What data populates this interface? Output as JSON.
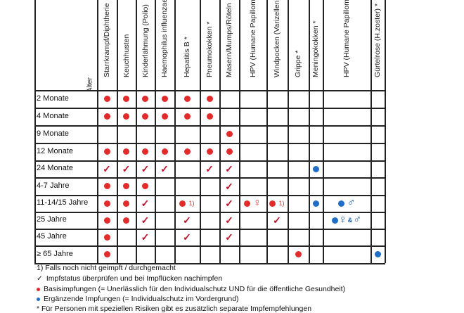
{
  "table": {
    "columns": [
      {
        "key": "alter",
        "label": "Alter"
      },
      {
        "key": "sd",
        "label": "Starrkrampf/Diphtherie"
      },
      {
        "key": "keuch",
        "label": "Keuchhusten"
      },
      {
        "key": "polio",
        "label": "Kinderlähmung (Polio)"
      },
      {
        "key": "hib",
        "label": "Haemophilus influenzae"
      },
      {
        "key": "hepb",
        "label": "Hepatitis B *"
      },
      {
        "key": "pneumo",
        "label": "Pneumokokken *"
      },
      {
        "key": "mmr",
        "label": "Masern/Mumps/Röteln"
      },
      {
        "key": "hpv1",
        "label": "HPV (Humane Papillomaviren)"
      },
      {
        "key": "vzv",
        "label": "Windpocken (Varizellen)"
      },
      {
        "key": "grippe",
        "label": "Grippe *"
      },
      {
        "key": "mening",
        "label": "Meningokokken *"
      },
      {
        "key": "hpv2",
        "label": "HPV (Humane Papillomaviren)"
      },
      {
        "key": "zoster",
        "label": "Gürtelrose (H.zoster) *"
      }
    ],
    "rows": [
      {
        "label": "2 Monate",
        "cells": {
          "sd": "red",
          "keuch": "red",
          "polio": "red",
          "hib": "red",
          "hepb": "red",
          "pneumo": "red"
        }
      },
      {
        "label": "4 Monate",
        "cells": {
          "sd": "red",
          "keuch": "red",
          "polio": "red",
          "hib": "red",
          "hepb": "red",
          "pneumo": "red"
        }
      },
      {
        "label": "9 Monate",
        "cells": {
          "mmr": "red"
        }
      },
      {
        "label": "12 Monate",
        "cells": {
          "sd": "red",
          "keuch": "red",
          "polio": "red",
          "hib": "red",
          "hepb": "red",
          "pneumo": "red",
          "mmr": "red"
        }
      },
      {
        "label": "24 Monate",
        "cells": {
          "sd": "check",
          "keuch": "check",
          "polio": "check",
          "hib": "check",
          "pneumo": "check",
          "mmr": "check",
          "mening": "blue"
        }
      },
      {
        "label": "4-7 Jahre",
        "cells": {
          "sd": "red",
          "keuch": "red",
          "polio": "red",
          "mmr": "check"
        }
      },
      {
        "label": "11-14/15 Jahre",
        "cells": {
          "sd": "red",
          "keuch": "red",
          "polio": "check",
          "hepb": "red-note",
          "mmr": "check",
          "hpv1": "red-female",
          "vzv": "red-note",
          "mening": "blue",
          "hpv2": "blue-male"
        }
      },
      {
        "label": "25 Jahre",
        "cells": {
          "sd": "red",
          "keuch": "red",
          "polio": "check",
          "hepb": "check",
          "mmr": "check",
          "vzv": "check",
          "hpv2": "blue-both"
        }
      },
      {
        "label": "45 Jahre",
        "cells": {
          "sd": "red",
          "polio": "check",
          "hepb": "check",
          "mmr": "check"
        }
      },
      {
        "label": "≥ 65 Jahre",
        "cells": {
          "sd": "red",
          "grippe": "red",
          "zoster": "blue"
        }
      }
    ],
    "note_marker": "1)",
    "female_symbol": "♀",
    "male_symbol": "♂",
    "amp": "&"
  },
  "legend": {
    "footnote": "1) Falls noch nicht geimpft / durchgemacht",
    "check_symbol": "✓",
    "check_text": "Impfstatus überprüfen und bei Impflücken nachimpfen",
    "red_text": "Basisimpfungen  (= Unerlässlich für den Individualschutz UND für die öffentliche Gesundheit)",
    "blue_text": "Ergänzende Impfungen  (= Individualschutz im Vordergrund)",
    "asterisk_text": "* Für Personen mit speziellen Risiken gibt es zusätzlich separate Impfempfehlungen"
  },
  "colors": {
    "basis": "#e32b2b",
    "ergaenzend": "#1f6fc8",
    "check": "#c0102a"
  }
}
